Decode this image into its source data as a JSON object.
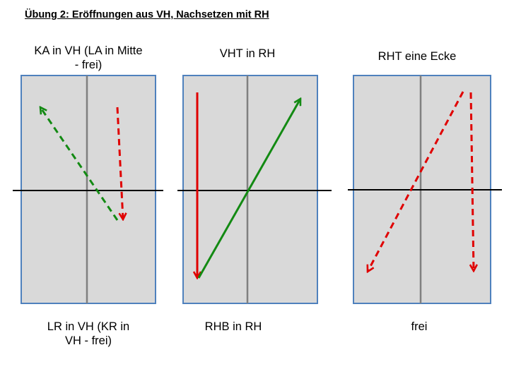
{
  "title": "Übung 2: Eröffnungen aus VH, Nachsetzen mit RH",
  "colors": {
    "court_fill": "#d9d9d9",
    "court_border": "#4f81bd",
    "center_line": "#808080",
    "net_line": "#000000",
    "arrow_red": "#e00000",
    "arrow_green": "#138a13"
  },
  "diagrams": [
    {
      "top_label": "KA in VH (LA in Mitte\n- frei)",
      "bottom_label": "LR in VH (KR in\nVH - frei)",
      "arrows": [
        {
          "color": "green",
          "style": "dashed"
        },
        {
          "color": "red",
          "style": "dashed"
        }
      ]
    },
    {
      "top_label": "VHT in RH",
      "bottom_label": "RHB in RH",
      "arrows": [
        {
          "color": "red",
          "style": "solid"
        },
        {
          "color": "green",
          "style": "solid"
        }
      ]
    },
    {
      "top_label": "RHT eine Ecke",
      "bottom_label": "frei",
      "arrows": [
        {
          "color": "red",
          "style": "dashed"
        },
        {
          "color": "red",
          "style": "dashed"
        }
      ]
    }
  ]
}
